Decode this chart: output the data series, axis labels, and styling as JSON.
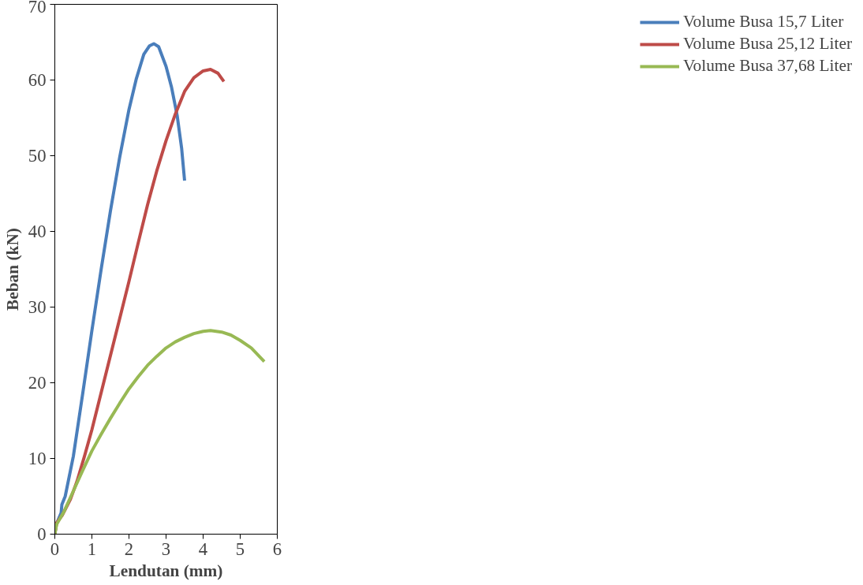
{
  "chart_data": {
    "type": "line",
    "xlabel": "Lendutan (mm)",
    "ylabel": "Beban (kN)",
    "xlim": [
      0,
      6
    ],
    "ylim": [
      0,
      70
    ],
    "xticks": [
      0,
      1,
      2,
      3,
      4,
      5,
      6
    ],
    "yticks": [
      0,
      10,
      20,
      30,
      40,
      50,
      60,
      70
    ],
    "grid": false,
    "legend": "right",
    "line_style": "solid",
    "marker": "none",
    "series": [
      {
        "name": "Volume Busa 15,7 Liter",
        "color": "#4a7ebb",
        "x": [
          0,
          0.03,
          0.1,
          0.17,
          0.19,
          0.28,
          0.5,
          0.75,
          1,
          1.25,
          1.5,
          1.75,
          2,
          2.2,
          2.4,
          2.55,
          2.67,
          2.8,
          3,
          3.15,
          3.3,
          3.42,
          3.5
        ],
        "values": [
          0,
          1.2,
          2,
          2.8,
          3.9,
          5,
          10.3,
          18.5,
          26.9,
          35,
          42.7,
          49.8,
          56.1,
          60.2,
          63.4,
          64.5,
          64.8,
          64.4,
          61.8,
          59,
          55.3,
          51,
          46.7
        ]
      },
      {
        "name": "Volume Busa 25,12 Liter",
        "color": "#be4b48",
        "x": [
          0,
          0.05,
          0.2,
          0.42,
          0.6,
          0.8,
          1,
          1.25,
          1.5,
          1.75,
          2,
          2.25,
          2.5,
          2.75,
          3,
          3.25,
          3.5,
          3.75,
          4,
          4.2,
          4.4,
          4.56
        ],
        "values": [
          0,
          1.5,
          2.5,
          4.6,
          7,
          10.3,
          13.8,
          18.7,
          23.6,
          28.5,
          33.4,
          38.5,
          43.5,
          48,
          52,
          55.5,
          58.5,
          60.3,
          61.2,
          61.4,
          60.9,
          59.8
        ]
      },
      {
        "name": "Volume Busa 37,68 Liter",
        "color": "#98b954",
        "x": [
          0,
          0.05,
          0.25,
          0.5,
          0.75,
          1,
          1.25,
          1.5,
          1.75,
          2,
          2.25,
          2.5,
          2.75,
          3,
          3.25,
          3.5,
          3.75,
          4,
          4.2,
          4.5,
          4.75,
          5,
          5.3,
          5.65
        ],
        "values": [
          0,
          1.3,
          3,
          5.7,
          8.4,
          11,
          13.2,
          15.3,
          17.3,
          19.2,
          20.8,
          22.3,
          23.5,
          24.6,
          25.4,
          26,
          26.5,
          26.8,
          26.9,
          26.7,
          26.3,
          25.6,
          24.6,
          22.8
        ]
      }
    ]
  }
}
